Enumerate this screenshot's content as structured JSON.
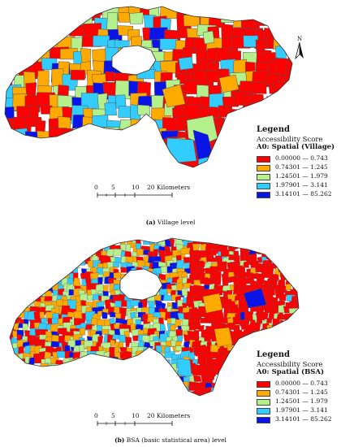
{
  "panels": [
    {
      "id": "a",
      "caption_label": "(a)",
      "caption_text": "Village level",
      "legend": {
        "title": "Legend",
        "subtitle": "Accessibility Score",
        "layer": "A0: Spatial (Village)",
        "classes": [
          {
            "range": "0.00000 — 0.743",
            "color": "#ff0000"
          },
          {
            "range": "0.74301 — 1.245",
            "color": "#ffaa00"
          },
          {
            "range": "1.24501 — 1.979",
            "color": "#b4f08c"
          },
          {
            "range": "1.97901 — 3.141",
            "color": "#33ccff"
          },
          {
            "range": "3.14101 — 85.262",
            "color": "#0a14e6"
          }
        ]
      },
      "scale": {
        "ticks": [
          "0",
          "5",
          "10",
          "20 Kilometers"
        ]
      },
      "north_label": "N"
    },
    {
      "id": "b",
      "caption_label": "(b)",
      "caption_text": "BSA (basic statistical area) level",
      "legend": {
        "title": "Legend",
        "subtitle": "Accessibility Score",
        "layer": "A0: Spatial (BSA)",
        "classes": [
          {
            "range": "0.00000 — 0.743",
            "color": "#ff0000"
          },
          {
            "range": "0.74301 — 1.245",
            "color": "#ffaa00"
          },
          {
            "range": "1.24501 — 1.979",
            "color": "#b4f08c"
          },
          {
            "range": "1.97901 — 3.141",
            "color": "#33ccff"
          },
          {
            "range": "3.14101 — 85.262",
            "color": "#0a14e6"
          }
        ]
      },
      "scale": {
        "ticks": [
          "0",
          "5",
          "10",
          "20 Kilometers"
        ]
      },
      "north_label": ""
    }
  ]
}
